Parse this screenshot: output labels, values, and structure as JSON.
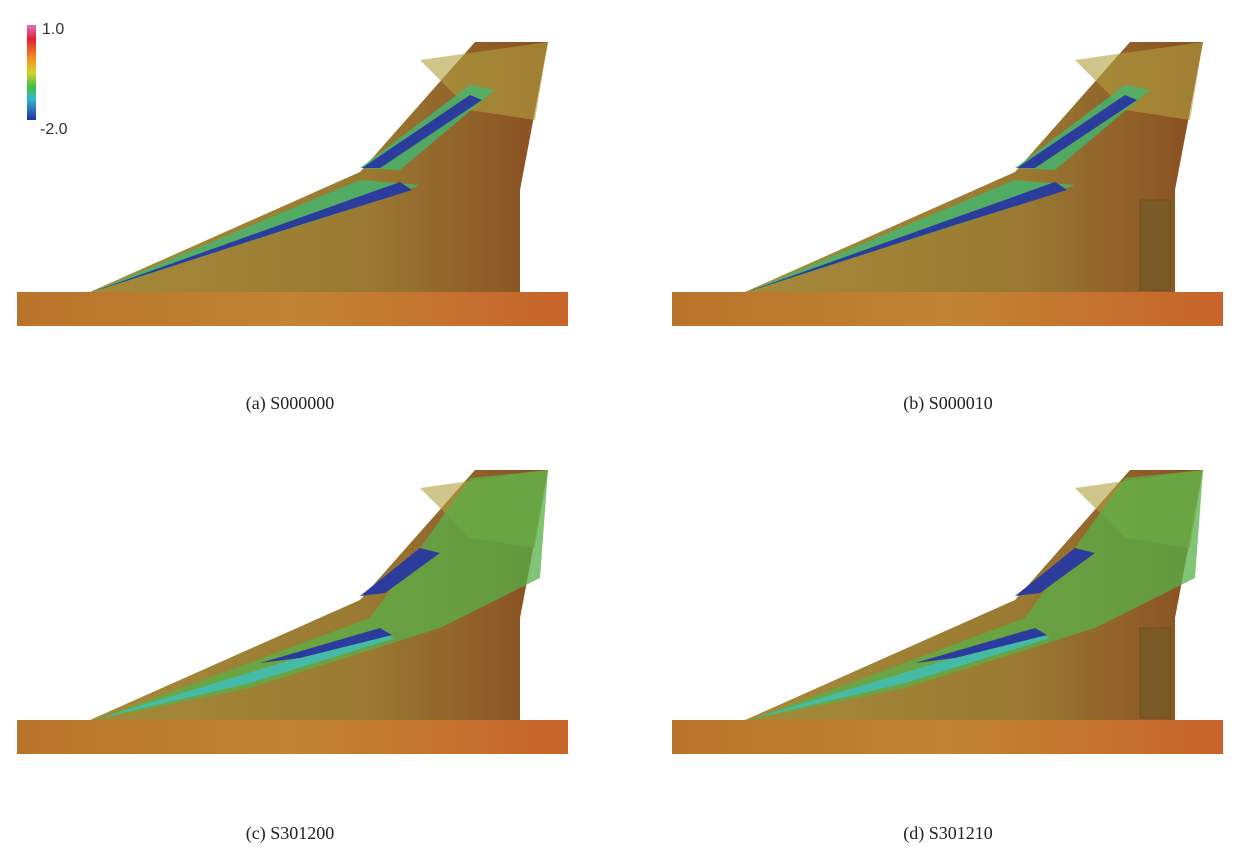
{
  "colorbar": {
    "max_label": "1.0",
    "min_label": "-2.0"
  },
  "panels": [
    {
      "caption": "(a)  S000000"
    },
    {
      "caption": "(b)  S000010"
    },
    {
      "caption": "(c)  S301200"
    },
    {
      "caption": "(d)  S301210"
    }
  ]
}
